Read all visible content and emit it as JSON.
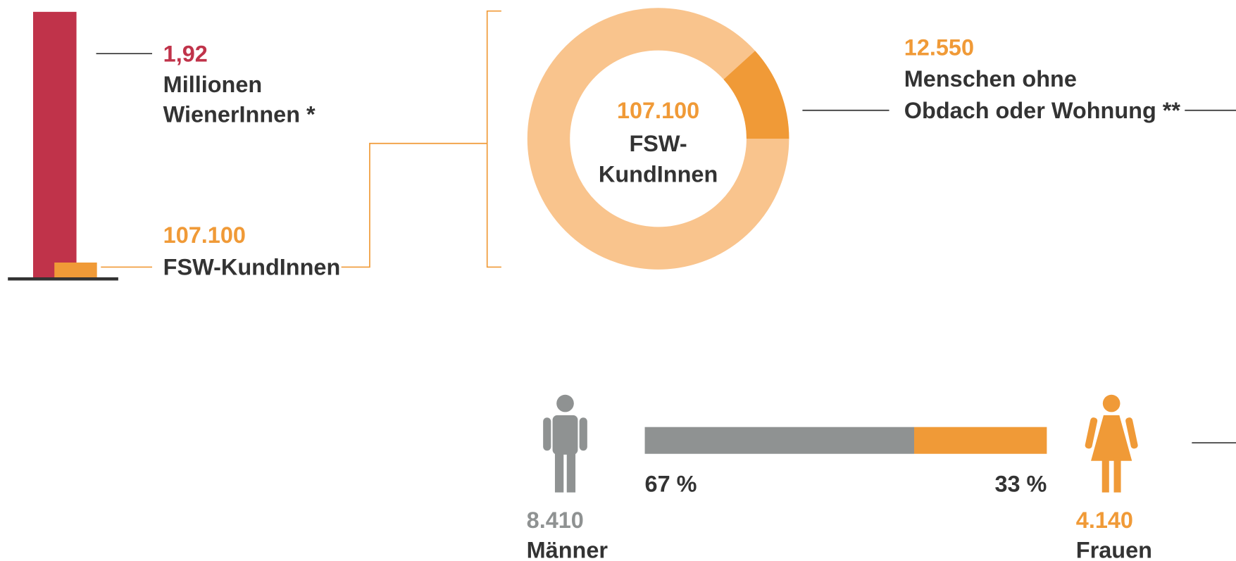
{
  "population": {
    "value": 1920000,
    "label": "1,92",
    "lines": [
      "Millionen",
      "WienerInnen *"
    ],
    "color": "#c0334a"
  },
  "clients": {
    "value": 107100,
    "label": "107.100",
    "text": "FSW-KundInnen",
    "color": "#f09a37"
  },
  "donut": {
    "center_value": {
      "value": 107100,
      "label": "107.100"
    },
    "center_lines": [
      "FSW-",
      "KundInnen"
    ],
    "ring_color": "#f9c48d",
    "segment": {
      "value": 12550,
      "label": "12.550",
      "lines": [
        "Menschen ohne",
        "Obdach oder Wohnung **"
      ],
      "color": "#f09a37"
    }
  },
  "gender": {
    "men": {
      "share": 67,
      "share_label": "67 %",
      "count": {
        "value": 8410,
        "label": "8.410"
      },
      "text": "Männer",
      "color": "#8f9292"
    },
    "women": {
      "share": 33,
      "share_label": "33 %",
      "count": {
        "value": 4140,
        "label": "4.140"
      },
      "text": "Frauen",
      "color": "#f09a37"
    }
  }
}
